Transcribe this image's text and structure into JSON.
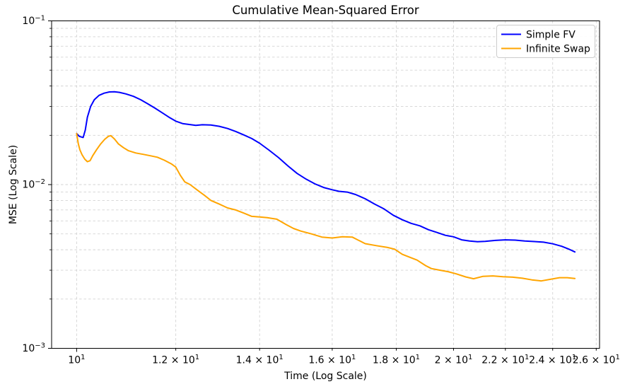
{
  "chart_data": {
    "type": "line",
    "title": "Cumulative Mean-Squared Error",
    "xlabel": "Time (Log Scale)",
    "ylabel": "MSE (Log Scale)",
    "x_scale": "log",
    "y_scale": "log",
    "xlim": [
      9.55,
      26.16
    ],
    "ylim": [
      0.001,
      0.1
    ],
    "grid": true,
    "grid_style": "dashed",
    "legend_position": "upper right",
    "colors": {
      "simple_fv": "#0000ff",
      "infinite_swap": "#ffa500",
      "grid": "#d3d3d3",
      "axis": "#000000",
      "legend_border": "#cccccc",
      "background": "#ffffff"
    },
    "x_ticks": [
      {
        "value": 10,
        "base": "10",
        "coef": "",
        "exp": "1",
        "major": true
      },
      {
        "value": 12,
        "base": "10",
        "coef": "1.2 × ",
        "exp": "1",
        "major": false
      },
      {
        "value": 14,
        "base": "10",
        "coef": "1.4 × ",
        "exp": "1",
        "major": false
      },
      {
        "value": 16,
        "base": "10",
        "coef": "1.6 × ",
        "exp": "1",
        "major": false
      },
      {
        "value": 18,
        "base": "10",
        "coef": "1.8 × ",
        "exp": "1",
        "major": false
      },
      {
        "value": 20,
        "base": "10",
        "coef": "2 × ",
        "exp": "1",
        "major": false
      },
      {
        "value": 22,
        "base": "10",
        "coef": "2.2 × ",
        "exp": "1",
        "major": false
      },
      {
        "value": 24,
        "base": "10",
        "coef": "2.4 × ",
        "exp": "1",
        "major": false
      },
      {
        "value": 26,
        "base": "10",
        "coef": "2.6 × ",
        "exp": "1",
        "major": false
      }
    ],
    "y_ticks": [
      {
        "value": 0.1,
        "base": "10",
        "exp": "−1"
      },
      {
        "value": 0.01,
        "base": "10",
        "exp": "−2"
      },
      {
        "value": 0.001,
        "base": "10",
        "exp": "−3"
      }
    ],
    "y_major_grid": [
      0.01
    ],
    "y_minor_grid": [
      0.002,
      0.003,
      0.004,
      0.005,
      0.006,
      0.007,
      0.008,
      0.009,
      0.02,
      0.03,
      0.04,
      0.05,
      0.06,
      0.07,
      0.08,
      0.09
    ],
    "series": [
      {
        "name": "Simple FV",
        "color": "#0000ff",
        "points": [
          [
            10.0,
            0.0205
          ],
          [
            10.05,
            0.0197
          ],
          [
            10.12,
            0.0194
          ],
          [
            10.16,
            0.0215
          ],
          [
            10.2,
            0.0258
          ],
          [
            10.26,
            0.03
          ],
          [
            10.33,
            0.033
          ],
          [
            10.42,
            0.0351
          ],
          [
            10.52,
            0.0362
          ],
          [
            10.62,
            0.0368
          ],
          [
            10.72,
            0.0369
          ],
          [
            10.82,
            0.0366
          ],
          [
            10.95,
            0.0358
          ],
          [
            11.1,
            0.0346
          ],
          [
            11.25,
            0.033
          ],
          [
            11.4,
            0.0311
          ],
          [
            11.55,
            0.0293
          ],
          [
            11.7,
            0.0275
          ],
          [
            11.85,
            0.0258
          ],
          [
            12.0,
            0.0244
          ],
          [
            12.15,
            0.0236
          ],
          [
            12.3,
            0.0233
          ],
          [
            12.45,
            0.023
          ],
          [
            12.6,
            0.0232
          ],
          [
            12.8,
            0.0231
          ],
          [
            13.0,
            0.0227
          ],
          [
            13.2,
            0.022
          ],
          [
            13.4,
            0.0211
          ],
          [
            13.6,
            0.0201
          ],
          [
            13.8,
            0.0191
          ],
          [
            14.0,
            0.0179
          ],
          [
            14.25,
            0.0162
          ],
          [
            14.5,
            0.0146
          ],
          [
            14.75,
            0.013
          ],
          [
            15.0,
            0.0117
          ],
          [
            15.25,
            0.0108
          ],
          [
            15.5,
            0.0101
          ],
          [
            15.75,
            0.0096
          ],
          [
            16.0,
            0.0093
          ],
          [
            16.2,
            0.0091
          ],
          [
            16.45,
            0.009
          ],
          [
            16.7,
            0.0087
          ],
          [
            17.0,
            0.0082
          ],
          [
            17.3,
            0.0076
          ],
          [
            17.6,
            0.0071
          ],
          [
            17.9,
            0.0065
          ],
          [
            18.2,
            0.0061
          ],
          [
            18.5,
            0.0058
          ],
          [
            18.8,
            0.0056
          ],
          [
            19.1,
            0.0053
          ],
          [
            19.4,
            0.0051
          ],
          [
            19.7,
            0.0049
          ],
          [
            20.0,
            0.0048
          ],
          [
            20.3,
            0.0046
          ],
          [
            20.6,
            0.00452
          ],
          [
            20.9,
            0.00448
          ],
          [
            21.2,
            0.0045
          ],
          [
            21.6,
            0.00456
          ],
          [
            22.0,
            0.0046
          ],
          [
            22.4,
            0.00458
          ],
          [
            22.8,
            0.00452
          ],
          [
            23.2,
            0.00449
          ],
          [
            23.6,
            0.00445
          ],
          [
            24.0,
            0.00435
          ],
          [
            24.4,
            0.0042
          ],
          [
            24.7,
            0.00405
          ],
          [
            25.0,
            0.00388
          ]
        ]
      },
      {
        "name": "Infinite Swap",
        "color": "#ffa500",
        "points": [
          [
            10.0,
            0.0205
          ],
          [
            10.03,
            0.0178
          ],
          [
            10.06,
            0.0163
          ],
          [
            10.1,
            0.0152
          ],
          [
            10.15,
            0.0143
          ],
          [
            10.2,
            0.0138
          ],
          [
            10.25,
            0.014
          ],
          [
            10.3,
            0.015
          ],
          [
            10.37,
            0.0163
          ],
          [
            10.45,
            0.0177
          ],
          [
            10.53,
            0.0189
          ],
          [
            10.6,
            0.0197
          ],
          [
            10.65,
            0.0199
          ],
          [
            10.72,
            0.019
          ],
          [
            10.8,
            0.0177
          ],
          [
            10.9,
            0.0168
          ],
          [
            11.0,
            0.0161
          ],
          [
            11.15,
            0.0156
          ],
          [
            11.3,
            0.0153
          ],
          [
            11.45,
            0.015
          ],
          [
            11.6,
            0.0147
          ],
          [
            11.75,
            0.0141
          ],
          [
            11.9,
            0.0134
          ],
          [
            12.0,
            0.0128
          ],
          [
            12.1,
            0.0114
          ],
          [
            12.2,
            0.0104
          ],
          [
            12.32,
            0.01
          ],
          [
            12.5,
            0.0092
          ],
          [
            12.65,
            0.0086
          ],
          [
            12.8,
            0.008
          ],
          [
            13.0,
            0.0076
          ],
          [
            13.2,
            0.0072
          ],
          [
            13.4,
            0.007
          ],
          [
            13.6,
            0.0067
          ],
          [
            13.8,
            0.0064
          ],
          [
            14.0,
            0.00635
          ],
          [
            14.2,
            0.00628
          ],
          [
            14.45,
            0.00615
          ],
          [
            14.7,
            0.0057
          ],
          [
            14.9,
            0.0054
          ],
          [
            15.1,
            0.0052
          ],
          [
            15.4,
            0.005
          ],
          [
            15.7,
            0.00478
          ],
          [
            16.0,
            0.00472
          ],
          [
            16.3,
            0.0048
          ],
          [
            16.6,
            0.00478
          ],
          [
            17.0,
            0.00436
          ],
          [
            17.35,
            0.00424
          ],
          [
            17.7,
            0.00414
          ],
          [
            17.95,
            0.00403
          ],
          [
            18.2,
            0.00375
          ],
          [
            18.45,
            0.0036
          ],
          [
            18.7,
            0.00346
          ],
          [
            19.0,
            0.0032
          ],
          [
            19.2,
            0.00307
          ],
          [
            19.5,
            0.003
          ],
          [
            19.8,
            0.00294
          ],
          [
            20.1,
            0.00285
          ],
          [
            20.45,
            0.00273
          ],
          [
            20.75,
            0.00266
          ],
          [
            21.1,
            0.00275
          ],
          [
            21.5,
            0.00277
          ],
          [
            21.9,
            0.00274
          ],
          [
            22.3,
            0.00272
          ],
          [
            22.7,
            0.00268
          ],
          [
            23.1,
            0.00262
          ],
          [
            23.5,
            0.00258
          ],
          [
            23.9,
            0.00264
          ],
          [
            24.3,
            0.0027
          ],
          [
            24.65,
            0.0027
          ],
          [
            25.0,
            0.00267
          ]
        ]
      }
    ]
  }
}
